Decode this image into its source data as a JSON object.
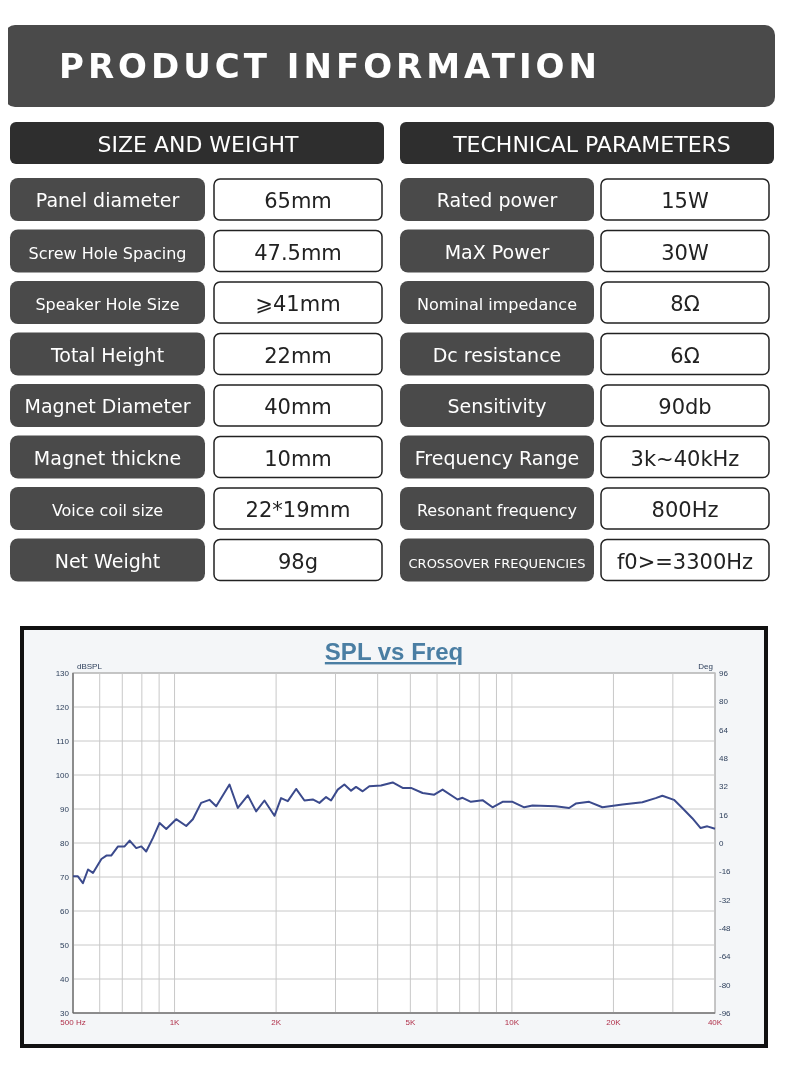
{
  "chart_data": [
    {
      "type": "other",
      "title": "PRODUCT INFORMATION",
      "annotations": [
        "SIZE AND WEIGHT",
        "TECHNICAL PARAMETERS",
        "Panel diameter",
        "65mm",
        "Screw Hole Spacing",
        "47.5mm",
        "Speaker Hole Size",
        "⩾41mm",
        "Total Height",
        "22mm",
        "Magnet Diameter",
        "40mm",
        "Magnet thickne",
        "10mm",
        "Voice coil  size",
        "22*19mm",
        "Net Weight",
        "98g",
        "Rated power",
        "15W",
        "MaX Power",
        "30W",
        "Nominal impedance",
        "8Ω",
        "Dc resistance",
        "6Ω",
        "Sensitivity",
        "90db",
        "Frequency Range",
        "3k~40kHz",
        "Resonant frequency",
        "800Hz",
        "CROSSOVER FREQUENCIES",
        "f0>=3300Hz"
      ]
    },
    {
      "type": "line",
      "title": "SPL vs Freq",
      "ylabel": "dBSPL",
      "y2label": "Deg",
      "log": "x",
      "grid": true,
      "xlim": [
        500,
        40000
      ],
      "xticks": [
        {
          "value": 500,
          "label": "500 Hz"
        },
        {
          "value": 600,
          "label": null
        },
        {
          "value": 700,
          "label": null
        },
        {
          "value": 800,
          "label": null
        },
        {
          "value": 900,
          "label": null
        },
        {
          "value": 1000,
          "label": "1K"
        },
        {
          "value": 2000,
          "label": "2K"
        },
        {
          "value": 3000,
          "label": null
        },
        {
          "value": 4000,
          "label": null
        },
        {
          "value": 5000,
          "label": "5K"
        },
        {
          "value": 6000,
          "label": null
        },
        {
          "value": 7000,
          "label": null
        },
        {
          "value": 8000,
          "label": null
        },
        {
          "value": 9000,
          "label": null
        },
        {
          "value": 10000,
          "label": "10K"
        },
        {
          "value": 20000,
          "label": "20K"
        },
        {
          "value": 30000,
          "label": null
        },
        {
          "value": 40000,
          "label": "40K"
        }
      ],
      "ylim": [
        30,
        130
      ],
      "yticks": [
        30,
        40,
        50,
        60,
        70,
        80,
        90,
        100,
        110,
        120,
        130
      ],
      "y2lim": [
        -96,
        96
      ],
      "y2ticks": [
        -96,
        -80,
        -64,
        -48,
        -32,
        -16,
        0,
        16,
        32,
        48,
        64,
        80,
        96
      ],
      "series": [
        {
          "color": "#3b4a8c",
          "x": [
            500,
            517,
            535,
            554,
            573,
            607,
            628,
            649,
            680,
            711,
            736,
            770,
            797,
            824,
            863,
            903,
            945,
            1011,
            1083,
            1133,
            1199,
            1269,
            1329,
            1455,
            1540,
            1649,
            1745,
            1847,
            1978,
            2069,
            2166,
            2293,
            2427,
            2569,
            2688,
            2813,
            2910,
            3046,
            3187,
            3336,
            3451,
            3611,
            3779,
            4092,
            4432,
            4744,
            5021,
            5437,
            5886,
            6230,
            6902,
            7141,
            7559,
            8185,
            8761,
            9382,
            10045,
            10875,
            11511,
            13490,
            14774,
            15467,
            16939,
            18546,
            21260,
            24364,
            26685,
            27925,
            30231,
            32000,
            34253,
            36262,
            37947,
            40000
          ],
          "values": [
            70.2,
            70.2,
            68.2,
            72.2,
            71.2,
            75.3,
            76.3,
            76.3,
            79,
            79,
            80.7,
            78.5,
            79,
            77.5,
            81.5,
            85.9,
            84.1,
            87,
            85,
            87,
            91.8,
            92.7,
            90.8,
            97.2,
            90.3,
            94,
            89.3,
            92.5,
            88,
            93.2,
            92.3,
            95.9,
            92.5,
            92.8,
            91.8,
            93.5,
            92.5,
            95.7,
            97.2,
            95.4,
            96.5,
            95.2,
            96.7,
            96.9,
            97.8,
            96.2,
            96.2,
            94.7,
            94.2,
            95.7,
            92.8,
            93.3,
            92.1,
            92.6,
            90.5,
            92.1,
            92.1,
            90.5,
            91,
            90.8,
            90.3,
            91.6,
            92.1,
            90.5,
            91.3,
            92,
            93.2,
            93.9,
            92.7,
            90.3,
            87.3,
            84.4,
            84.9,
            84.2
          ]
        }
      ]
    }
  ]
}
